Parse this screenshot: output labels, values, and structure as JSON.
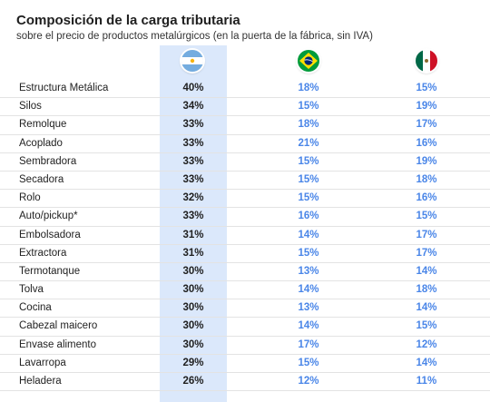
{
  "header": {
    "title": "Composición de la carga tributaria",
    "subtitle": "sobre el precio de  productos metalúrgicos (en la puerta de la fábrica, sin IVA)"
  },
  "columns": [
    {
      "country_flag": "argentina-flag-icon"
    },
    {
      "country_flag": "brazil-flag-icon"
    },
    {
      "country_flag": "mexico-flag-icon"
    }
  ],
  "colors": {
    "highlight_column": "#dbe8fb",
    "comparison_values": "#4a86e8"
  },
  "rows": [
    {
      "label": "Estructura Metálica",
      "ar": "40%",
      "br": "18%",
      "mx": "15%"
    },
    {
      "label": "Silos",
      "ar": "34%",
      "br": "15%",
      "mx": "19%"
    },
    {
      "label": "Remolque",
      "ar": "33%",
      "br": "18%",
      "mx": "17%"
    },
    {
      "label": "Acoplado",
      "ar": "33%",
      "br": "21%",
      "mx": "16%"
    },
    {
      "label": "Sembradora",
      "ar": "33%",
      "br": "15%",
      "mx": "19%"
    },
    {
      "label": "Secadora",
      "ar": "33%",
      "br": "15%",
      "mx": "18%"
    },
    {
      "label": "Rolo",
      "ar": "32%",
      "br": "15%",
      "mx": "16%"
    },
    {
      "label": "Auto/pickup*",
      "ar": "33%",
      "br": "16%",
      "mx": "15%"
    },
    {
      "label": "Embolsadora",
      "ar": "31%",
      "br": "14%",
      "mx": "17%"
    },
    {
      "label": "Extractora",
      "ar": "31%",
      "br": "15%",
      "mx": "17%"
    },
    {
      "label": "Termotanque",
      "ar": "30%",
      "br": "13%",
      "mx": "14%"
    },
    {
      "label": "Tolva",
      "ar": "30%",
      "br": "14%",
      "mx": "18%"
    },
    {
      "label": "Cocina",
      "ar": "30%",
      "br": "13%",
      "mx": "14%"
    },
    {
      "label": "Cabezal maicero",
      "ar": "30%",
      "br": "14%",
      "mx": "15%"
    },
    {
      "label": "Envase alimento",
      "ar": "30%",
      "br": "17%",
      "mx": "12%"
    },
    {
      "label": "Lavarropa",
      "ar": "29%",
      "br": "15%",
      "mx": "14%"
    },
    {
      "label": "Heladera",
      "ar": "26%",
      "br": "12%",
      "mx": "11%"
    }
  ]
}
